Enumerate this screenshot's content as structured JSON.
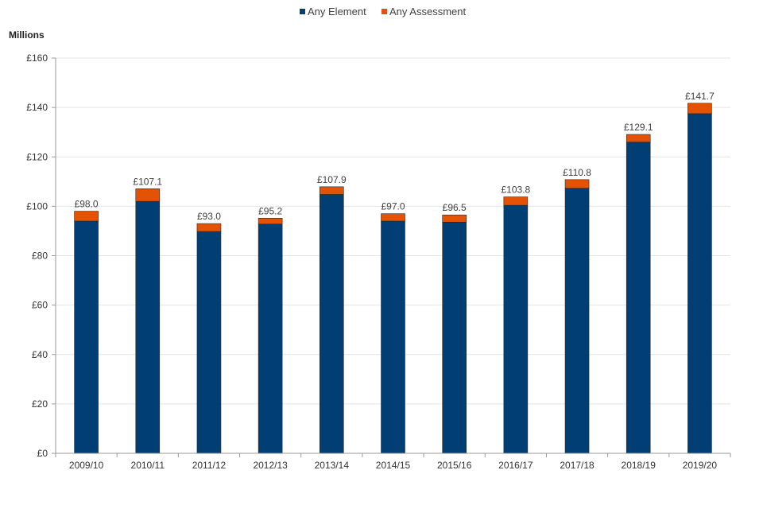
{
  "chart_data": {
    "type": "bar",
    "stacked": true,
    "ylabel": "Millions",
    "ylim": [
      0,
      160
    ],
    "yticks": [
      0,
      20,
      40,
      60,
      80,
      100,
      120,
      140,
      160
    ],
    "ytick_labels": [
      "£0",
      "£20",
      "£40",
      "£60",
      "£80",
      "£100",
      "£120",
      "£140",
      "£160"
    ],
    "categories": [
      "2009/10",
      "2010/11",
      "2011/12",
      "2012/13",
      "2013/14",
      "2014/15",
      "2015/16",
      "2016/17",
      "2017/18",
      "2018/19",
      "2019/20"
    ],
    "series": [
      {
        "name": "Any Element",
        "color": "#003e74",
        "values": [
          94.0,
          102.0,
          89.8,
          92.8,
          104.8,
          94.0,
          93.6,
          100.4,
          107.3,
          126.0,
          137.5
        ]
      },
      {
        "name": "Any Assessment",
        "color": "#e35205",
        "values": [
          4.0,
          5.1,
          3.2,
          2.4,
          3.1,
          3.0,
          2.9,
          3.4,
          3.5,
          3.1,
          4.2
        ]
      }
    ],
    "totals": [
      98.0,
      107.1,
      93.0,
      95.2,
      107.9,
      97.0,
      96.5,
      103.8,
      110.8,
      129.1,
      141.7
    ],
    "total_labels": [
      "£98.0",
      "£107.1",
      "£93.0",
      "£95.2",
      "£107.9",
      "£97.0",
      "£96.5",
      "£103.8",
      "£110.8",
      "£129.1",
      "£141.7"
    ],
    "legend_position": "top-center",
    "grid": true
  }
}
